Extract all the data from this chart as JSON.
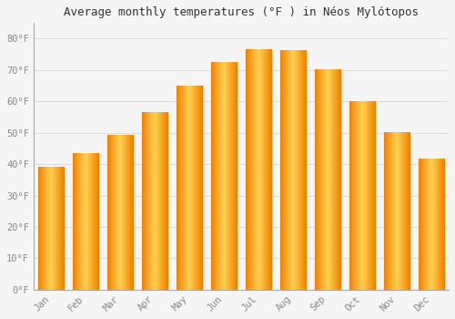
{
  "title": "Average monthly temperatures (°F ) in Néos Mylótopos",
  "months": [
    "Jan",
    "Feb",
    "Mar",
    "Apr",
    "May",
    "Jun",
    "Jul",
    "Aug",
    "Sep",
    "Oct",
    "Nov",
    "Dec"
  ],
  "values": [
    39.2,
    43.5,
    49.3,
    56.7,
    65.1,
    72.5,
    76.8,
    76.3,
    70.2,
    60.1,
    50.2,
    41.9
  ],
  "bar_color_light": "#FFD050",
  "bar_color_dark": "#F08000",
  "background_color": "#f5f5f5",
  "grid_color": "#dddddd",
  "ylim": [
    0,
    85
  ],
  "ytick_values": [
    0,
    10,
    20,
    30,
    40,
    50,
    60,
    70,
    80
  ],
  "ylabel_suffix": "°F",
  "title_fontsize": 9,
  "tick_fontsize": 7.5,
  "font_family": "monospace"
}
